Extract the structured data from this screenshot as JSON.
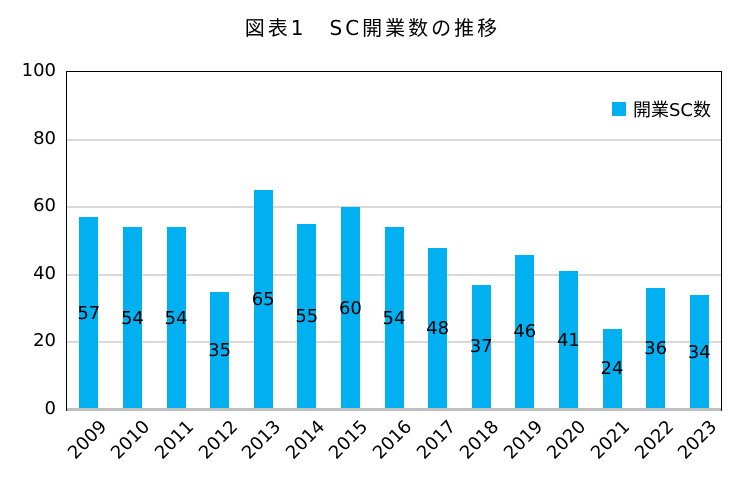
{
  "title": "図表1　SC開業数の推移",
  "legend": {
    "label": "開業SC数",
    "swatch_color": "#00B0F0"
  },
  "chart_data": {
    "type": "bar",
    "title": "図表1　SC開業数の推移",
    "categories": [
      "2009",
      "2010",
      "2011",
      "2012",
      "2013",
      "2014",
      "2015",
      "2016",
      "2017",
      "2018",
      "2019",
      "2020",
      "2021",
      "2022",
      "2023"
    ],
    "series": [
      {
        "name": "開業SC数",
        "values": [
          57,
          54,
          54,
          35,
          65,
          55,
          60,
          54,
          48,
          37,
          46,
          41,
          24,
          36,
          34
        ]
      }
    ],
    "xlabel": "",
    "ylabel": "",
    "ylim": [
      0,
      100
    ],
    "yticks": [
      0,
      20,
      40,
      60,
      80,
      100
    ],
    "grid": true,
    "legend_position": "top-right-inside",
    "data_labels_position": "center",
    "colors": {
      "bar": "#00B0F0",
      "gridline": "#D9D9D9",
      "axis_line": "#BFBFBF",
      "plot_border": "#000000",
      "text": "#000000"
    }
  }
}
